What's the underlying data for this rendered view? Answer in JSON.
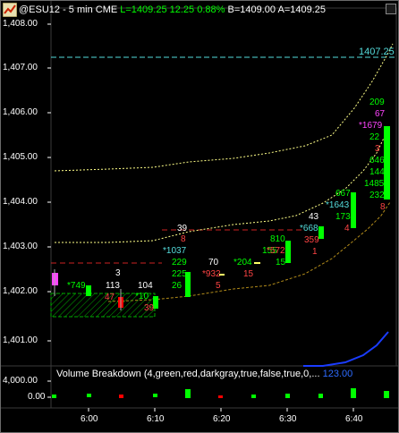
{
  "header": {
    "symbol": "@ESU12 - 5 min  CME",
    "last": "L=1409.25",
    "change": "12.25",
    "percent": "0.88%",
    "bid": "B=1409.00",
    "ask": "A=1409.25"
  },
  "price_axis": [
    "1,408.00",
    "1,407.00",
    "1,406.00",
    "1,405.00",
    "1,404.00",
    "1,403.00",
    "1,402.00",
    "1,401.00"
  ],
  "volume_axis": [
    "4,000.00",
    "0.00"
  ],
  "time_axis": [
    "6:00",
    "6:10",
    "6:20",
    "6:30",
    "6:40"
  ],
  "price_line_label": "1407.25",
  "volume_study": {
    "title": "Volume Breakdown (4,green,red,darkgray,true,false,true,0,...",
    "value": "123.00"
  },
  "colors": {
    "up": "#00ff00",
    "down": "#ff0000",
    "band": "#ffff66",
    "cyan": "#55dddd",
    "magenta": "#ff44ff",
    "volume_line": "#1a3cff"
  },
  "annotations": {
    "a1": "*749",
    "a2": "3",
    "a3": "113",
    "a4": "47",
    "a5": "104",
    "a6": "*10",
    "a7": "39",
    "a8": "39",
    "a9": "8",
    "a10": "*1037",
    "a11": "229",
    "a12": "225",
    "a13": "26",
    "a14": "70",
    "a15": "*932",
    "a16": "5",
    "a17": "155",
    "a18": "*204",
    "a19": "15",
    "a20": "810",
    "a21": "*572",
    "a22": "15",
    "a23": "43",
    "a24": "*668",
    "a25": "359",
    "a26": "1",
    "a27": "667",
    "a28": "*1643",
    "a29": "173",
    "a30": "4",
    "a31": "209",
    "a32": "67",
    "a33": "*1679",
    "a34": "22",
    "a35": "3",
    "a36": "646",
    "a37": "144",
    "a38": "1485",
    "a39": "232",
    "a40": "8"
  }
}
